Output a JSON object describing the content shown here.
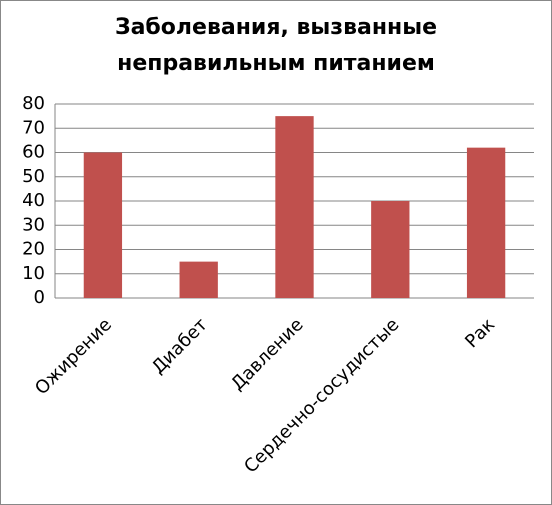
{
  "chart_data": {
    "type": "bar",
    "title": "Заболевания, вызванные неправильным питанием",
    "categories": [
      "Ожирение",
      "Диабет",
      "Давление",
      "Сердечно-сосудистые",
      "Рак"
    ],
    "values": [
      60,
      15,
      75,
      40,
      62
    ],
    "color": "#c0504d",
    "ylim": [
      0,
      80
    ],
    "yticks": [
      0,
      10,
      20,
      30,
      40,
      50,
      60,
      70,
      80
    ],
    "grid": true
  }
}
